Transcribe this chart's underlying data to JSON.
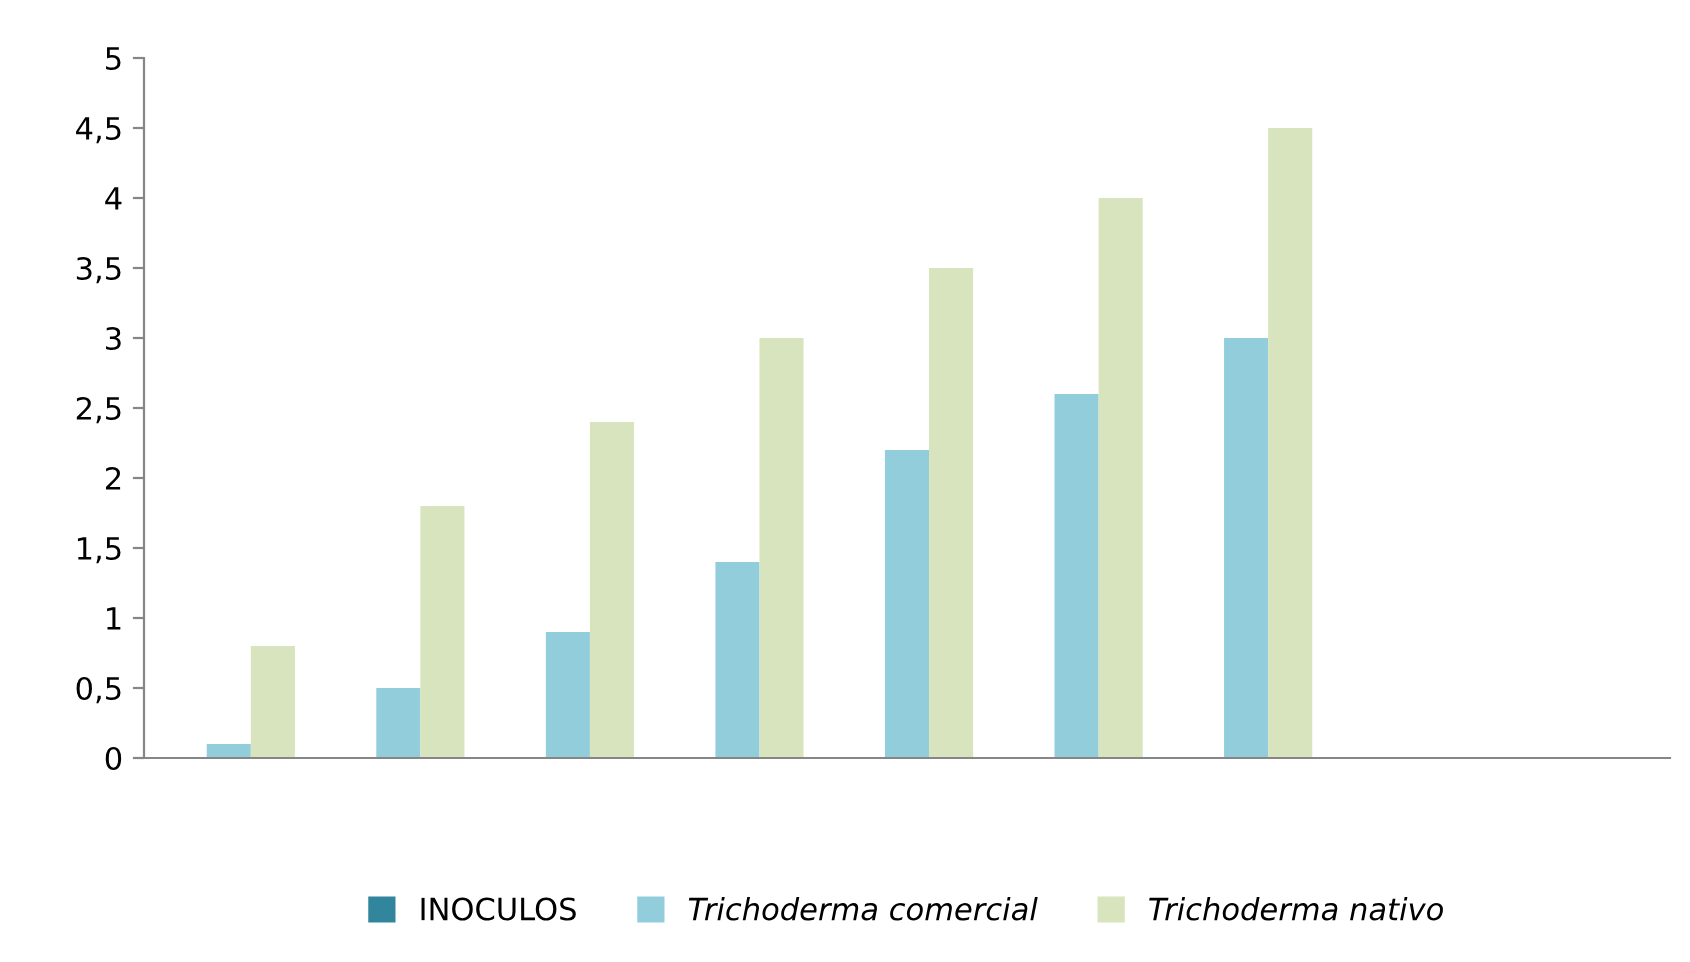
{
  "chart_data": {
    "type": "bar",
    "categories": [
      null,
      null,
      null,
      null,
      null,
      null,
      null,
      null,
      null
    ],
    "series": [
      {
        "name": "INOCULOS",
        "color": "#31859c",
        "values": [
          null,
          null,
          null,
          null,
          null,
          null,
          null,
          null,
          null
        ]
      },
      {
        "name": "Trichoderma comercial",
        "color": "#92cddc",
        "values": [
          0.1,
          0.5,
          0.9,
          1.4,
          2.2,
          2.6,
          3.0,
          null,
          null
        ]
      },
      {
        "name": "Trichoderma nativo",
        "color": "#d7e4bd",
        "values": [
          0.8,
          1.8,
          2.4,
          3.0,
          3.5,
          4.0,
          4.5,
          null,
          null
        ]
      }
    ],
    "ylim": [
      0,
      5
    ],
    "yticks": [
      0,
      {
        "value": 0.5,
        "label": "0,5"
      },
      1,
      {
        "value": 1.5,
        "label": "1,5"
      },
      2,
      {
        "value": 2.5,
        "label": "2,5"
      },
      3,
      {
        "value": 3.5,
        "label": "3,5"
      },
      4,
      {
        "value": 4.5,
        "label": "4,5"
      },
      5
    ],
    "grid": false,
    "legend": "bottom"
  }
}
